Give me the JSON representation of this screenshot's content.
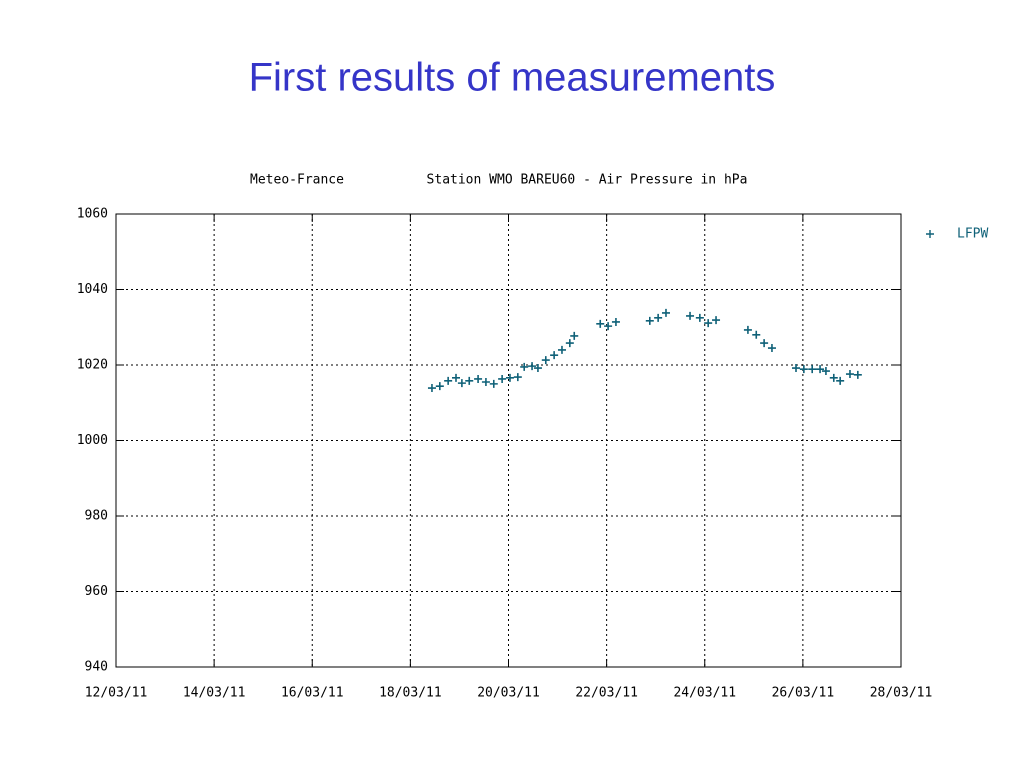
{
  "heading": "First results of measurements",
  "chart_data": {
    "type": "scatter",
    "title": "Meteo-France",
    "subtitle": "Station WMO BAREU60 - Air Pressure in hPa",
    "xlim": [
      12,
      28
    ],
    "xticks": [
      {
        "value": 12,
        "label": "12/03/11"
      },
      {
        "value": 14,
        "label": "14/03/11"
      },
      {
        "value": 16,
        "label": "16/03/11"
      },
      {
        "value": 18,
        "label": "18/03/11"
      },
      {
        "value": 20,
        "label": "20/03/11"
      },
      {
        "value": 22,
        "label": "22/03/11"
      },
      {
        "value": 24,
        "label": "24/03/11"
      },
      {
        "value": 26,
        "label": "26/03/11"
      },
      {
        "value": 28,
        "label": "28/03/11"
      }
    ],
    "ylim": [
      940,
      1060
    ],
    "yticks": [
      940,
      960,
      980,
      1000,
      1020,
      1040,
      1060
    ],
    "grid": true,
    "legend": "top-right",
    "series": [
      {
        "name": "LFPW",
        "color": "#0f6178",
        "x": [
          18.44,
          18.6,
          18.77,
          18.93,
          19.05,
          19.2,
          19.38,
          19.54,
          19.7,
          19.87,
          20.03,
          20.19,
          20.32,
          20.48,
          20.6,
          20.76,
          20.93,
          21.09,
          21.25,
          21.34,
          21.87,
          22.03,
          22.19,
          22.88,
          23.05,
          23.21,
          23.7,
          23.9,
          24.07,
          24.23,
          24.88,
          25.05,
          25.21,
          25.37,
          25.86,
          26.02,
          26.19,
          26.35,
          26.47,
          26.63,
          26.76,
          26.96,
          27.12
        ],
        "values": [
          1013.9,
          1014.4,
          1015.8,
          1016.6,
          1015.2,
          1015.8,
          1016.3,
          1015.5,
          1015.0,
          1016.3,
          1016.6,
          1016.8,
          1019.5,
          1019.7,
          1019.2,
          1021.3,
          1022.6,
          1024.0,
          1025.8,
          1027.7,
          1030.9,
          1030.3,
          1031.4,
          1031.7,
          1032.5,
          1033.8,
          1033.0,
          1032.5,
          1031.1,
          1031.9,
          1029.3,
          1028.0,
          1025.8,
          1024.5,
          1019.2,
          1018.9,
          1018.9,
          1018.9,
          1018.4,
          1016.6,
          1015.8,
          1017.6,
          1017.4
        ]
      }
    ]
  }
}
